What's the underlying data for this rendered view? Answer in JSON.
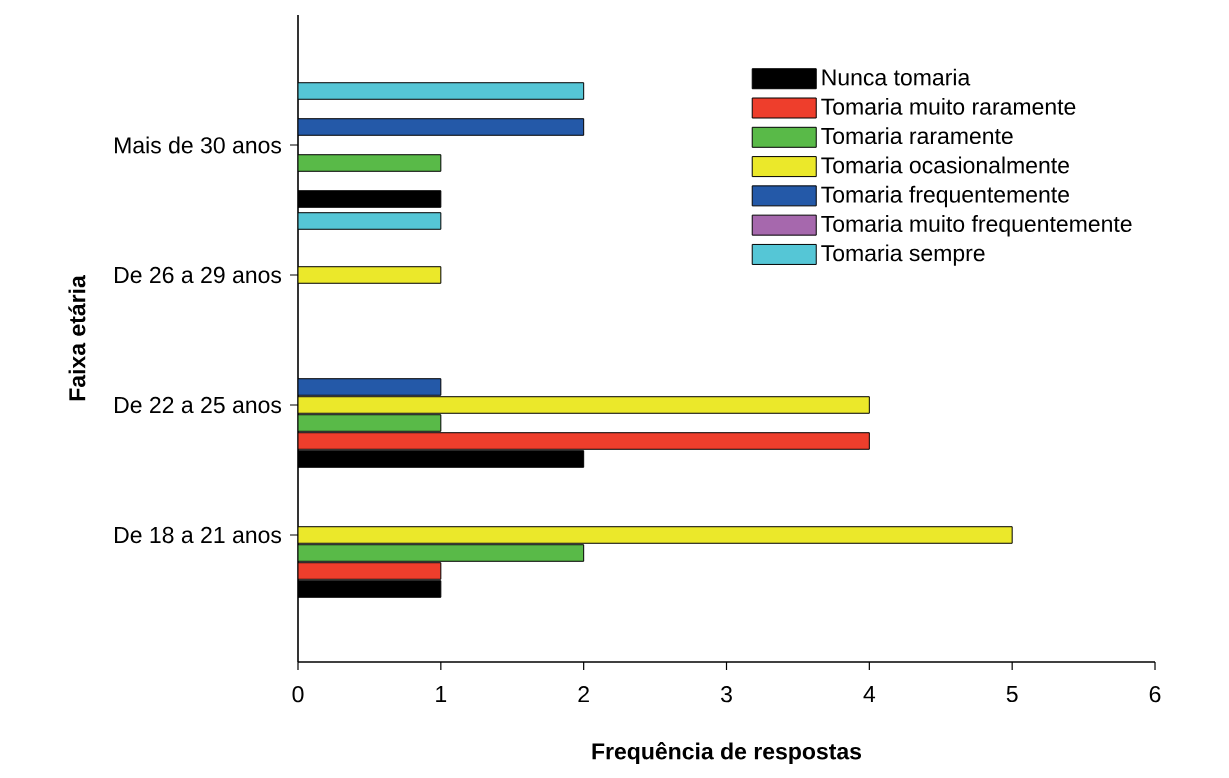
{
  "chart_data": {
    "type": "bar",
    "orientation": "horizontal",
    "xlabel": "Frequência de respostas",
    "ylabel": "Faixa etária",
    "categories": [
      "Mais de 30 anos",
      "De 26 a 29 anos",
      "De 22 a 25 anos",
      "De 18 a 21 anos"
    ],
    "series": [
      {
        "name": "Tomaria sempre",
        "color": "#55c6d6",
        "values": [
          2,
          1,
          null,
          null
        ]
      },
      {
        "name": "Tomaria muito frequentemente",
        "color": "#a668ad",
        "values": [
          null,
          null,
          null,
          null
        ]
      },
      {
        "name": "Tomaria frequentemente",
        "color": "#2459a8",
        "values": [
          2,
          null,
          1,
          null
        ]
      },
      {
        "name": "Tomaria ocasionalmente",
        "color": "#ebe82a",
        "values": [
          null,
          1,
          4,
          5
        ]
      },
      {
        "name": "Tomaria raramente",
        "color": "#59ba48",
        "values": [
          1,
          null,
          1,
          2
        ]
      },
      {
        "name": "Tomaria muito raramente",
        "color": "#ee3e2c",
        "values": [
          null,
          null,
          4,
          1
        ]
      },
      {
        "name": "Nunca tomaria",
        "color": "#000000",
        "values": [
          1,
          null,
          2,
          1
        ]
      }
    ],
    "xlim": [
      0,
      6
    ],
    "xticks": [
      0,
      1,
      2,
      3,
      4,
      5,
      6
    ],
    "legend": "top right"
  }
}
